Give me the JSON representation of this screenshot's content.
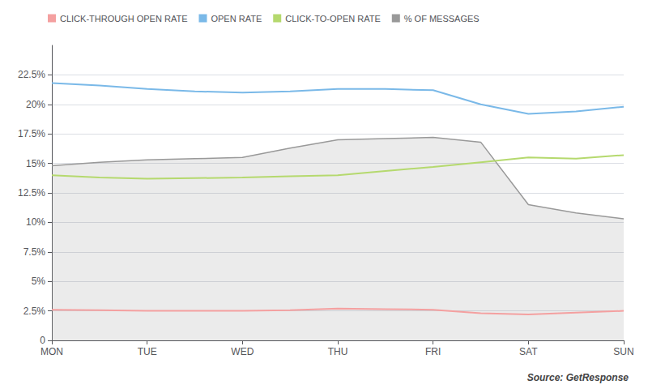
{
  "chart_data": {
    "type": "line",
    "x": [
      0,
      0.5,
      1,
      1.5,
      2,
      2.5,
      3,
      3.5,
      4,
      4.5,
      5,
      5.5,
      6
    ],
    "xlim": [
      0,
      6
    ],
    "xticks": [
      {
        "value": 0,
        "label": "MON"
      },
      {
        "value": 1,
        "label": "TUE"
      },
      {
        "value": 2,
        "label": "WED"
      },
      {
        "value": 3,
        "label": "THU"
      },
      {
        "value": 4,
        "label": "FRI"
      },
      {
        "value": 5,
        "label": "SAT"
      },
      {
        "value": 6,
        "label": "SUN"
      }
    ],
    "ylim": [
      0,
      25
    ],
    "yticks": [
      0,
      {
        "value": 2.5,
        "label": "2.5%"
      },
      {
        "value": 5.0,
        "label": "5%"
      },
      {
        "value": 7.5,
        "label": "7.5%"
      },
      {
        "value": 10.0,
        "label": "10%"
      },
      {
        "value": 12.5,
        "label": "12.5%"
      },
      {
        "value": 15.0,
        "label": "15%"
      },
      {
        "value": 17.5,
        "label": "17.5%"
      },
      {
        "value": 20.0,
        "label": "20%"
      },
      {
        "value": 22.5,
        "label": "22.5%"
      }
    ],
    "grid": true,
    "legend": "top-left",
    "annotation": "Source: GetResponse",
    "series": [
      {
        "name": "CLICK-THROUGH OPEN RATE",
        "color": "#f4a0a0",
        "values": [
          2.6,
          2.55,
          2.5,
          2.5,
          2.5,
          2.55,
          2.7,
          2.65,
          2.6,
          2.3,
          2.2,
          2.35,
          2.5
        ]
      },
      {
        "name": "OPEN RATE",
        "color": "#7ab9e8",
        "values": [
          21.8,
          21.6,
          21.3,
          21.1,
          21.0,
          21.1,
          21.3,
          21.3,
          21.2,
          20.0,
          19.2,
          19.4,
          19.8
        ]
      },
      {
        "name": "CLICK-TO-OPEN RATE",
        "color": "#b5d96e",
        "values": [
          14.0,
          13.8,
          13.7,
          13.75,
          13.8,
          13.9,
          14.0,
          14.35,
          14.7,
          15.1,
          15.5,
          15.4,
          15.7
        ]
      },
      {
        "name": "% OF MESSAGES",
        "color": "#999999",
        "type": "area",
        "values": [
          14.8,
          15.1,
          15.3,
          15.4,
          15.5,
          16.3,
          17.0,
          17.1,
          17.2,
          16.8,
          11.5,
          10.8,
          10.3
        ]
      }
    ]
  }
}
